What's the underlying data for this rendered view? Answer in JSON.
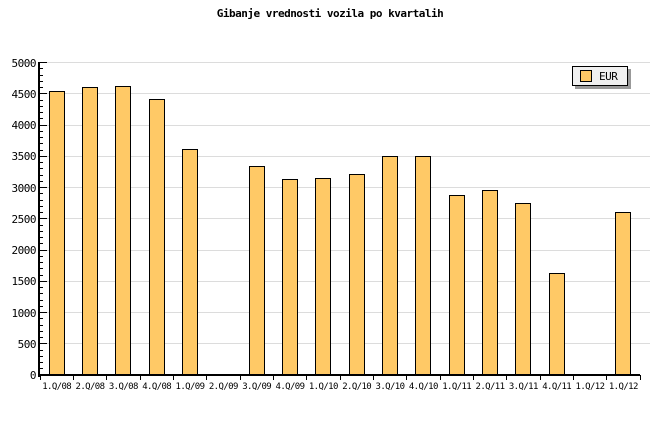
{
  "title": "Gibanje vrednosti vozila po kvartalih",
  "legend": {
    "label": "EUR"
  },
  "colors": {
    "background": "#FFFFFF",
    "bar_fill": "#FFC966",
    "bar_border": "#000000",
    "grid": "#DCDCDC",
    "axis": "#000000",
    "legend_bg": "#F0F0F0",
    "legend_shadow": "#999999"
  },
  "chart_data": {
    "type": "bar",
    "title": "Gibanje vrednosti vozila po kvartalih",
    "categories": [
      "1.Q/08",
      "2.Q/08",
      "3.Q/08",
      "4.Q/08",
      "1.Q/09",
      "2.Q/09",
      "3.Q/09",
      "4.Q/09",
      "1.Q/10",
      "2.Q/10",
      "3.Q/10",
      "4.Q/10",
      "1.Q/11",
      "2.Q/11",
      "3.Q/11",
      "4.Q/11",
      "1.Q/12",
      "1.Q/12"
    ],
    "series": [
      {
        "name": "EUR",
        "values": [
          4550,
          4610,
          4620,
          4410,
          3610,
          null,
          3350,
          3140,
          3150,
          3220,
          3500,
          3500,
          2880,
          2960,
          2750,
          1630,
          null,
          2610
        ]
      }
    ],
    "xlabel": "",
    "ylabel": "",
    "ylim": [
      0,
      5000
    ],
    "y_major_step": 500,
    "y_minor_step": 100,
    "y_tick_labels": [
      "0",
      "500",
      "1000",
      "1500",
      "2000",
      "2500",
      "3000",
      "3500",
      "4000",
      "4500",
      "5000"
    ],
    "grid": "horizontal-major",
    "legend_position": "top-right"
  }
}
